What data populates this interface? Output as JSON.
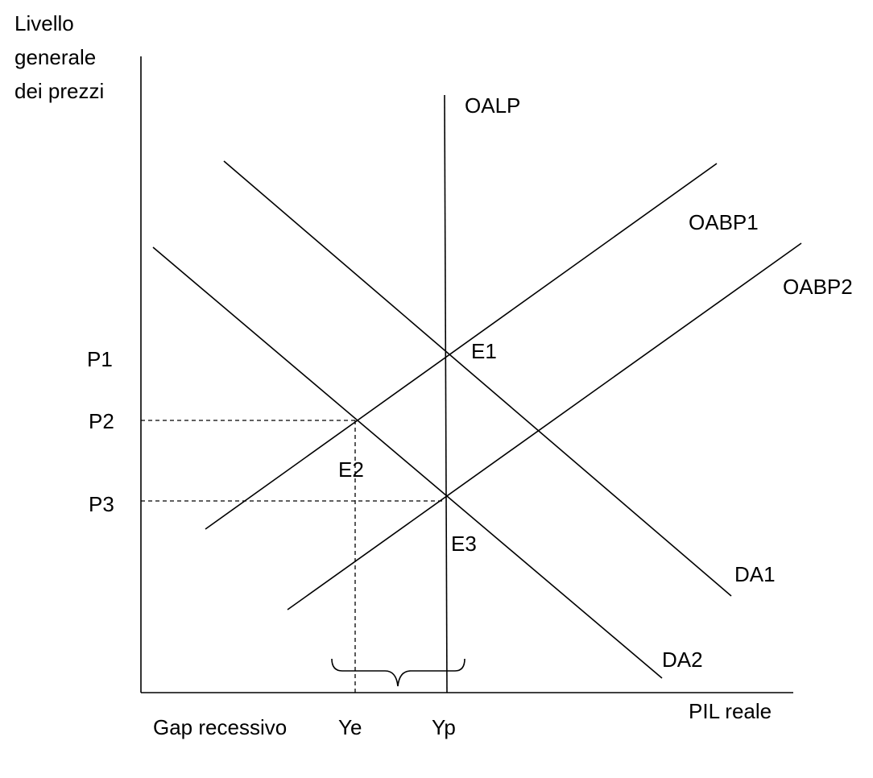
{
  "axes": {
    "y_label": [
      "Livello",
      "generale",
      "dei prezzi"
    ],
    "x_label": "PIL reale"
  },
  "curves": {
    "lras": "OALP",
    "sras1": "OABP1",
    "sras2": "OABP2",
    "ad1": "DA1",
    "ad2": "DA2"
  },
  "equilibria": [
    "E1",
    "E2",
    "E3"
  ],
  "prices": [
    "P1",
    "P2",
    "P3"
  ],
  "outputs": [
    "Ye",
    "Yp"
  ],
  "gap": "Gap recessivo"
}
